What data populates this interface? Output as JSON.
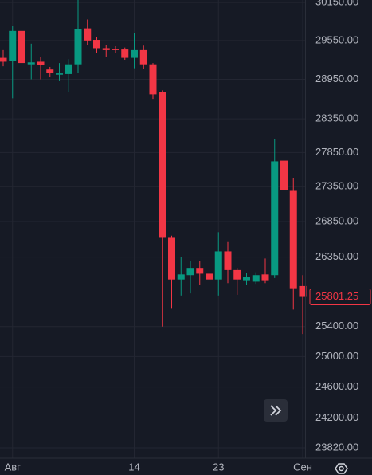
{
  "chart_data": {
    "type": "candlestick",
    "categories": [
      null,
      "Авг",
      null,
      null,
      null,
      null,
      null,
      null,
      null,
      null,
      null,
      null,
      null,
      null,
      "14",
      null,
      null,
      null,
      null,
      null,
      null,
      null,
      null,
      "23",
      null,
      null,
      null,
      null,
      null,
      null,
      null,
      null,
      "Сен"
    ],
    "open": [
      29280,
      29230,
      29700,
      29180,
      29220,
      29100,
      29020,
      29030,
      29180,
      29740,
      29560,
      29430,
      29420,
      29410,
      29280,
      29400,
      29180,
      28750,
      26620,
      26040,
      26100,
      26200,
      26120,
      26040,
      26430,
      26170,
      26030,
      26010,
      26110,
      26100,
      27730,
      27290,
      25950
    ],
    "high": [
      29400,
      29780,
      29980,
      29500,
      29300,
      29140,
      29200,
      29260,
      30240,
      29880,
      29610,
      29480,
      29460,
      29440,
      29660,
      29470,
      29200,
      28780,
      26650,
      26350,
      26300,
      26300,
      26180,
      26700,
      26560,
      26200,
      26130,
      26140,
      26330,
      28050,
      27780,
      27480,
      26100
    ],
    "low": [
      29150,
      28660,
      28850,
      28950,
      28950,
      28980,
      28920,
      28750,
      29050,
      29480,
      29360,
      29300,
      29350,
      29250,
      29120,
      29110,
      28650,
      25400,
      25640,
      25820,
      25850,
      25960,
      25440,
      25820,
      25990,
      25830,
      25960,
      25980,
      25990,
      26060,
      26760,
      25630,
      25300
    ],
    "close": [
      29220,
      29700,
      29200,
      29210,
      29170,
      29050,
      29040,
      29180,
      29730,
      29550,
      29430,
      29400,
      29400,
      29280,
      29400,
      29180,
      28720,
      26620,
      26040,
      26110,
      26200,
      26120,
      26040,
      26430,
      26170,
      26040,
      26080,
      26100,
      26030,
      27720,
      27300,
      25920,
      25801.25
    ],
    "up_color": "#089981",
    "down_color": "#f23645",
    "last_price": {
      "value": 25801.25,
      "label": "25801.25"
    },
    "ylim": [
      23690,
      30190
    ],
    "log_scale": true,
    "grid": true,
    "yticks": [
      {
        "value": 30150,
        "label": "30150.00"
      },
      {
        "value": 29550,
        "label": "29550.00"
      },
      {
        "value": 28950,
        "label": "28950.00"
      },
      {
        "value": 28350,
        "label": "28350.00"
      },
      {
        "value": 27850,
        "label": "27850.00"
      },
      {
        "value": 27350,
        "label": "27350.00"
      },
      {
        "value": 26850,
        "label": "26850.00"
      },
      {
        "value": 26350,
        "label": "26350.00"
      },
      {
        "value": 25400,
        "label": "25400.00"
      },
      {
        "value": 25000,
        "label": "25000.00"
      },
      {
        "value": 24600,
        "label": "24600.00"
      },
      {
        "value": 24200,
        "label": "24200.00"
      },
      {
        "value": 23820,
        "label": "23820.00"
      }
    ]
  }
}
